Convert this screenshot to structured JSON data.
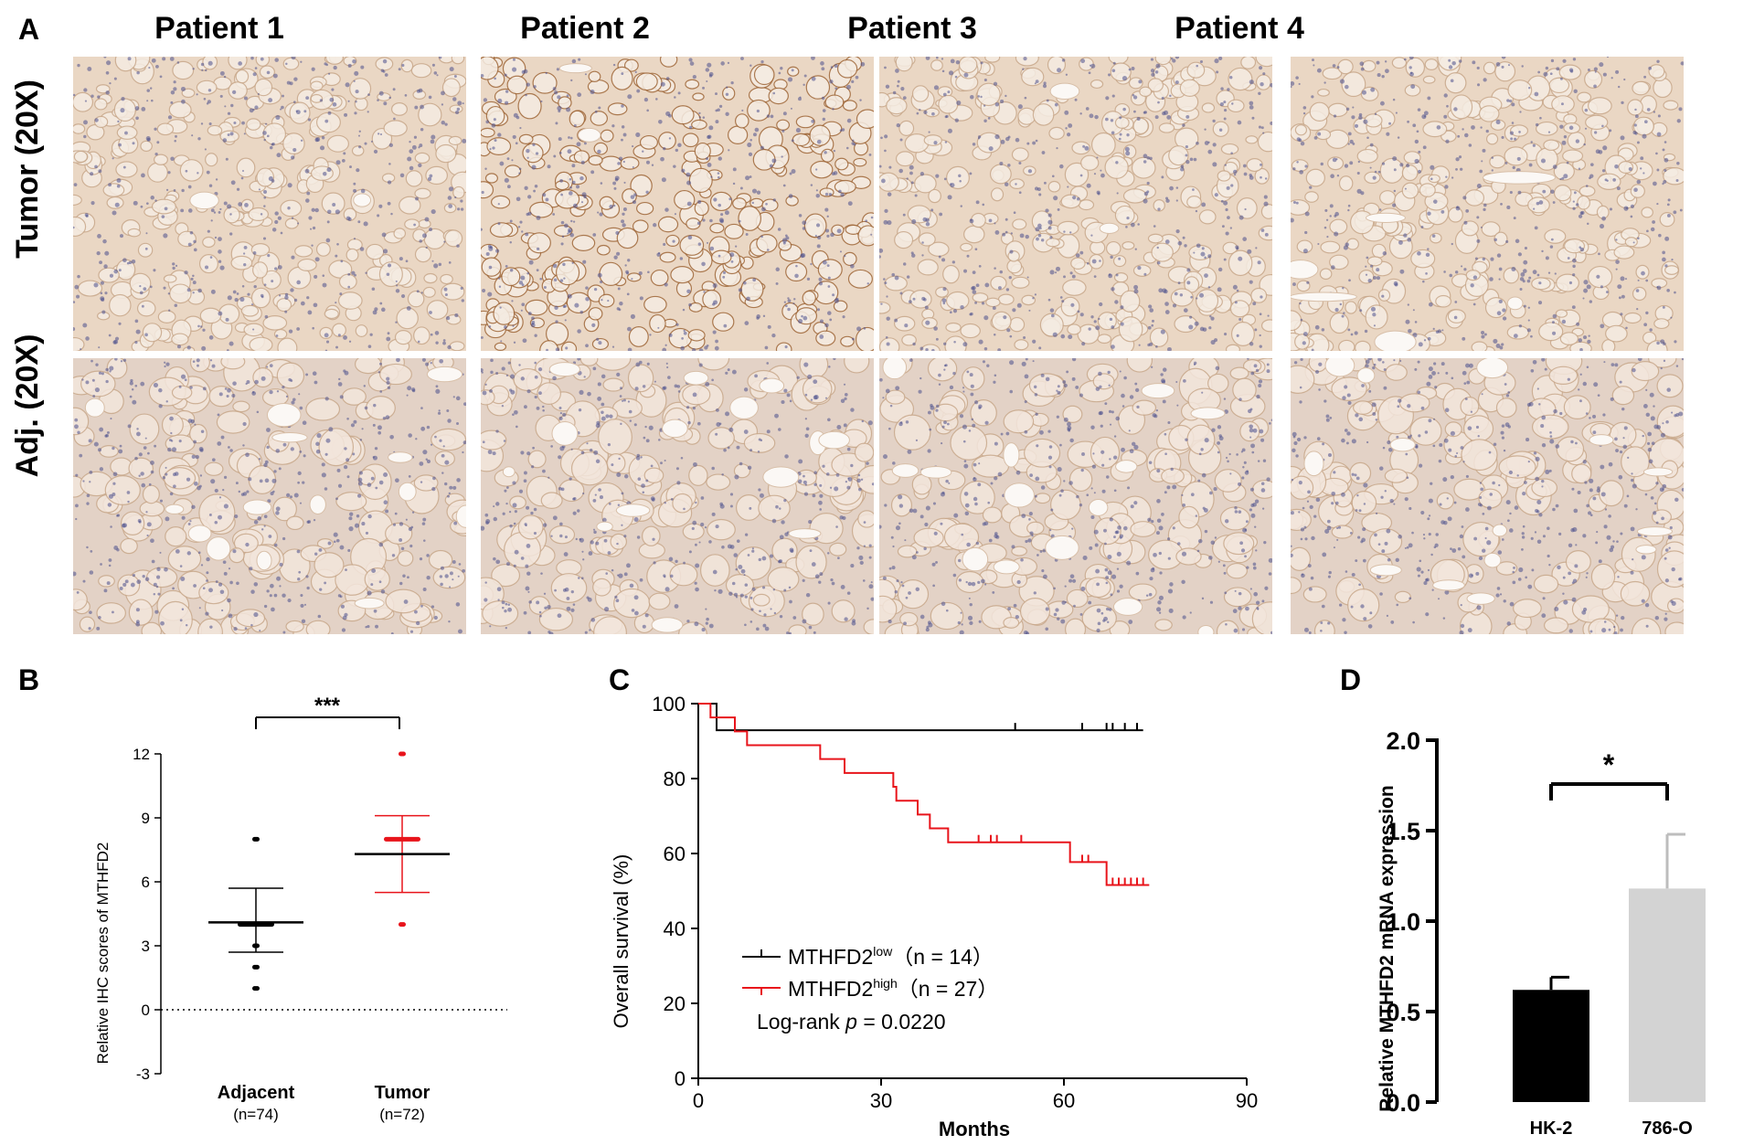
{
  "panel_a": {
    "letter": "A",
    "columns": [
      "Patient 1",
      "Patient 2",
      "Patient 3",
      "Patient 4"
    ],
    "rows": [
      "Tumor  (20X)",
      "Adj.   (20X)"
    ]
  },
  "chart_data": [
    {
      "panel": "B",
      "type": "scatter",
      "ylabel": "Relative IHC scores of MTHFD2",
      "ylim": [
        -3,
        12
      ],
      "yticks": [
        -3,
        0,
        3,
        6,
        9,
        12
      ],
      "categories": [
        "Adjacent",
        "Tumor"
      ],
      "category_n": [
        "(n=74)",
        "(n=72)"
      ],
      "series": [
        {
          "name": "Adjacent",
          "color": "#000000",
          "points": [
            8,
            4,
            4,
            4,
            4,
            3,
            2,
            1
          ],
          "mean": 4.1,
          "sd_low": 2.7,
          "sd_high": 5.7
        },
        {
          "name": "Tumor",
          "color": "#e8141b",
          "points": [
            12,
            8,
            8,
            8,
            8,
            4
          ],
          "mean": 7.3,
          "sd_low": 5.5,
          "sd_high": 9.1
        }
      ],
      "significance": "***",
      "reference_line": 0
    },
    {
      "panel": "C",
      "type": "line",
      "xlabel": "Months",
      "ylabel": "Overall survival (%)",
      "xlim": [
        0,
        90
      ],
      "ylim": [
        0,
        100
      ],
      "xticks": [
        0,
        30,
        60,
        90
      ],
      "yticks": [
        0,
        20,
        40,
        60,
        80,
        100
      ],
      "series": [
        {
          "name": "MTHFD2",
          "superscript": "low",
          "n_text": "（n = 14）",
          "color": "#000000",
          "steps": [
            [
              0,
              100
            ],
            [
              3,
              100
            ],
            [
              3,
              92.9
            ],
            [
              73,
              92.9
            ]
          ],
          "censor": [
            52,
            63,
            67,
            68,
            70,
            72
          ]
        },
        {
          "name": "MTHFD2",
          "superscript": "high",
          "n_text": "（n = 27）",
          "color": "#e8141b",
          "steps": [
            [
              0,
              100
            ],
            [
              2,
              100
            ],
            [
              2,
              96.3
            ],
            [
              6,
              96.3
            ],
            [
              6,
              92.6
            ],
            [
              8,
              92.6
            ],
            [
              8,
              88.9
            ],
            [
              20,
              88.9
            ],
            [
              20,
              85.2
            ],
            [
              24,
              85.2
            ],
            [
              24,
              81.5
            ],
            [
              32,
              81.5
            ],
            [
              32,
              77.8
            ],
            [
              32.5,
              77.8
            ],
            [
              32.5,
              74.1
            ],
            [
              36,
              74.1
            ],
            [
              36,
              70.4
            ],
            [
              38,
              70.4
            ],
            [
              38,
              66.7
            ],
            [
              41,
              66.7
            ],
            [
              41,
              63.0
            ],
            [
              61,
              63.0
            ],
            [
              61,
              57.7
            ],
            [
              67,
              57.7
            ],
            [
              67,
              51.6
            ],
            [
              74,
              51.6
            ]
          ],
          "censor": [
            46,
            48,
            49,
            53,
            63,
            64,
            68,
            69,
            70,
            71,
            72,
            73
          ]
        }
      ],
      "annotation": "Log-rank p = 0.0220",
      "legend": "bottom-left"
    },
    {
      "panel": "D",
      "type": "bar",
      "ylabel": "Relative MTHFD2 mRNA expression",
      "categories": [
        "HK-2",
        "786-O"
      ],
      "values": [
        0.62,
        1.18
      ],
      "errors": [
        0.07,
        0.3
      ],
      "colors": [
        "#000000",
        "#d3d3d3"
      ],
      "ylim": [
        0,
        2.0
      ],
      "yticks": [
        "0.0",
        "0.5",
        "1.0",
        "1.5",
        "2.0"
      ],
      "significance": "*"
    }
  ],
  "texts": {
    "b_letter": "B",
    "c_letter": "C",
    "d_letter": "D",
    "b_ylabel": "Relative IHC scores of MTHFD2",
    "b_sig": "***",
    "b_cat1": "Adjacent",
    "b_cat2": "Tumor",
    "b_n1": "(n=74)",
    "b_n2": "(n=72)",
    "c_xlabel": "Months",
    "c_ylabel": "Overall survival (%)",
    "c_leg1_name": "MTHFD2",
    "c_leg1_sup": "low",
    "c_leg1_n": "（n = 14）",
    "c_leg2_name": "MTHFD2",
    "c_leg2_sup": "high",
    "c_leg2_n": "（n = 27）",
    "c_logrank_a": "Log-rank ",
    "c_logrank_p": "p",
    "c_logrank_b": " = 0.0220",
    "d_ylabel": "Relative MTHFD2 mRNA expression",
    "d_sig": "*",
    "d_cat1": "HK-2",
    "d_cat2": "786-O"
  },
  "colors": {
    "red": "#e8141b",
    "tumor_tissue": "#ead7c4",
    "adj_tissue": "#e3d2c6",
    "nuclei": "#4a4f8c",
    "stain": "#a0683a"
  }
}
